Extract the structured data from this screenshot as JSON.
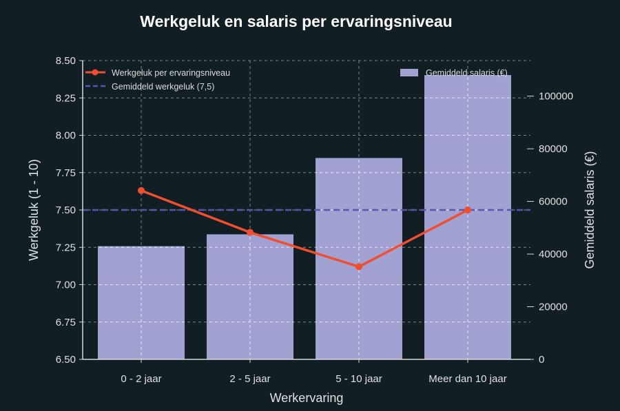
{
  "title": "Werkgeluk en salaris per ervaringsniveau",
  "chart_data": {
    "type": "bar+line",
    "title": "Werkgeluk en salaris per ervaringsniveau",
    "xlabel": "Werkervaring",
    "ylabel_left": "Werkgeluk (1 - 10)",
    "ylabel_right": "Gemiddeld salaris (€)",
    "categories": [
      "0 - 2 jaar",
      "2 - 5 jaar",
      "5 - 10 jaar",
      "Meer dan 10 jaar"
    ],
    "series": [
      {
        "name": "Gemiddeld salaris (€)",
        "type": "bar",
        "axis": "right",
        "color": "#a1a1d2",
        "values": [
          43000,
          47500,
          76500,
          108000
        ]
      },
      {
        "name": "Werkgeluk per ervaringsniveau",
        "type": "line",
        "axis": "left",
        "color": "#f04e2f",
        "values": [
          7.63,
          7.35,
          7.12,
          7.5
        ]
      },
      {
        "name": "Gemiddeld werkgeluk (7,5)",
        "type": "hline",
        "axis": "left",
        "color": "#5a55b0",
        "value": 7.5
      }
    ],
    "ylim_left": [
      6.5,
      8.5
    ],
    "yticks_left": [
      "6.50",
      "6.75",
      "7.00",
      "7.25",
      "7.50",
      "7.75",
      "8.00",
      "8.25",
      "8.50"
    ],
    "ylim_right": [
      0,
      113500
    ],
    "yticks_right": [
      "0",
      "20000",
      "40000",
      "60000",
      "80000",
      "100000"
    ],
    "grid": true,
    "legend_left": [
      "Werkgeluk per ervaringsniveau",
      "Gemiddeld werkgeluk (7,5)"
    ],
    "legend_right": [
      "Gemiddeld salaris (€)"
    ]
  }
}
